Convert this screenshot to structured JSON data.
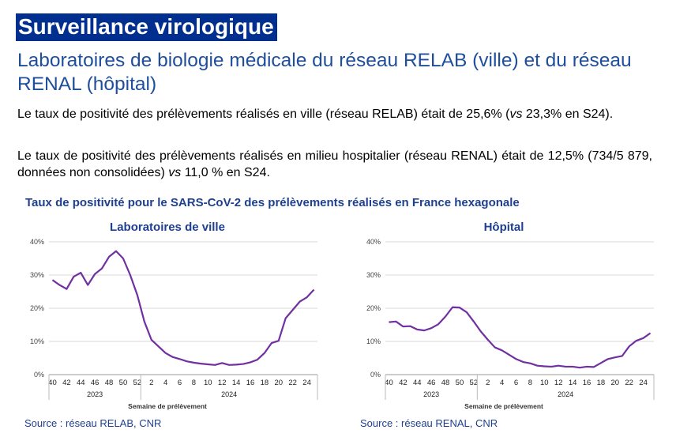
{
  "header": {
    "title": "Surveillance virologique",
    "subtitle": "Laboratoires de biologie médicale du réseau RELAB (ville) et du réseau RENAL (hôpital)"
  },
  "paragraphs": [
    [
      "Le taux de positivité des prélèvements réalisés en ville (réseau RELAB) était de 25,6% (",
      "vs",
      " 23,3% en S24)."
    ],
    [
      "Le taux de positivité des prélèvements réalisés en milieu hospitalier (réseau RENAL) était de 12,5% (734/5 879, données non consolidées) ",
      "vs",
      " 11,0 % en S24."
    ]
  ],
  "figure_title": "Taux de positivité pour le SARS-CoV-2 des prélèvements réalisés en France hexagonale",
  "chart_data": [
    {
      "type": "line",
      "title": "Laboratoires de ville",
      "categories": [
        "40",
        null,
        "42",
        null,
        "44",
        null,
        "46",
        null,
        "48",
        null,
        "50",
        null,
        "52",
        null,
        "2",
        null,
        "4",
        null,
        "6",
        null,
        "8",
        null,
        "10",
        null,
        "12",
        null,
        "14",
        null,
        "16",
        null,
        "18",
        null,
        "20",
        null,
        "22",
        null,
        "24",
        null
      ],
      "x_groups": [
        "2023",
        "2024"
      ],
      "x_label": "Semaine de prélèvement",
      "series": [
        {
          "color": "#7030a0",
          "values": [
            28.5,
            27,
            25.8,
            29.5,
            30.7,
            27,
            30.3,
            32,
            35.5,
            37.2,
            35,
            30,
            24,
            16,
            10.5,
            8.5,
            6.5,
            5.3,
            4.7,
            4,
            3.6,
            3.3,
            3.1,
            2.9,
            3.5,
            2.9,
            3.0,
            3.2,
            3.7,
            4.5,
            6.5,
            9.5,
            10.2,
            17,
            19.5,
            22,
            23.3,
            25.6
          ]
        }
      ],
      "ylim": [
        0,
        40
      ],
      "yticks": [
        {
          "value": 0,
          "label": "0%"
        },
        {
          "value": 10,
          "label": "10%"
        },
        {
          "value": 20,
          "label": "20%"
        },
        {
          "value": 30,
          "label": "30%"
        },
        {
          "value": 40,
          "label": "40%"
        }
      ],
      "grid": true,
      "source": "Source : réseau RELAB, CNR"
    },
    {
      "type": "line",
      "title": "Hôpital",
      "categories": [
        "40",
        null,
        "42",
        null,
        "44",
        null,
        "46",
        null,
        "48",
        null,
        "50",
        null,
        "52",
        null,
        "2",
        null,
        "4",
        null,
        "6",
        null,
        "8",
        null,
        "10",
        null,
        "12",
        null,
        "14",
        null,
        "16",
        null,
        "18",
        null,
        "20",
        null,
        "22",
        null,
        "24",
        null
      ],
      "x_groups": [
        "2023",
        "2024"
      ],
      "x_label": "Semaine de prélèvement",
      "series": [
        {
          "color": "#7030a0",
          "values": [
            15.8,
            16,
            14.5,
            14.6,
            13.6,
            13.3,
            14,
            15.2,
            17.5,
            20.3,
            20.2,
            18.8,
            16,
            13,
            10.5,
            8.2,
            7.3,
            6,
            4.7,
            3.8,
            3.4,
            2.7,
            2.5,
            2.4,
            2.7,
            2.4,
            2.4,
            2.1,
            2.4,
            2.3,
            3.5,
            4.7,
            5.2,
            5.6,
            8.5,
            10.2,
            11,
            12.5
          ]
        }
      ],
      "ylim": [
        0,
        40
      ],
      "yticks": [
        {
          "value": 0,
          "label": "0%"
        },
        {
          "value": 10,
          "label": "10%"
        },
        {
          "value": 20,
          "label": "20%"
        },
        {
          "value": 30,
          "label": "30%"
        },
        {
          "value": 40,
          "label": "40%"
        }
      ],
      "grid": true,
      "source": "Source : réseau RENAL, CNR"
    }
  ]
}
